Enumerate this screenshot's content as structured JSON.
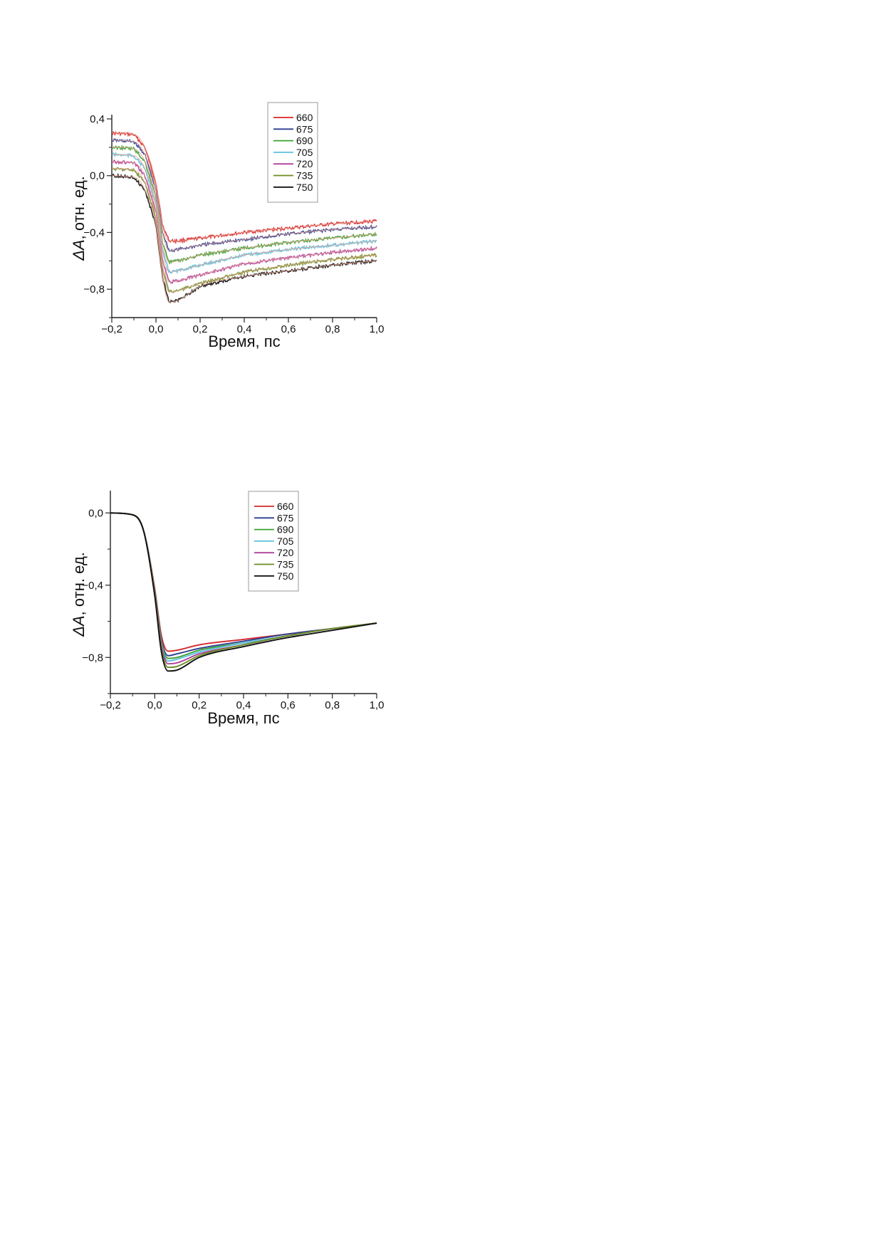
{
  "chart_data": [
    {
      "type": "line",
      "panel": "top",
      "xlabel": "Время, пс",
      "ylabel_symbol": "ΔA",
      "ylabel_text": ", отн. ед.",
      "xlim": [
        -0.2,
        1.0
      ],
      "ylim": [
        -1.0,
        0.4
      ],
      "xticks": [
        -0.2,
        0.0,
        0.2,
        0.4,
        0.6,
        0.8,
        1.0
      ],
      "xtick_labels": [
        "−0,2",
        "0,0",
        "0,2",
        "0,4",
        "0,6",
        "0,8",
        "1,0"
      ],
      "yticks": [
        -0.8,
        -0.4,
        0.0,
        0.4
      ],
      "ytick_labels": [
        "−0,8",
        "−0,4",
        "0,0",
        "0,4"
      ],
      "legend_position": "top-right",
      "grid": false,
      "note": "noisy measured traces with smooth fits overlaid",
      "series": [
        {
          "name": "660",
          "color": "#d62728",
          "x": [
            -0.2,
            -0.1,
            -0.05,
            0.0,
            0.03,
            0.06,
            0.1,
            0.2,
            0.4,
            0.6,
            0.8,
            1.0
          ],
          "y": [
            0.3,
            0.29,
            0.2,
            -0.05,
            -0.35,
            -0.46,
            -0.46,
            -0.44,
            -0.4,
            -0.37,
            -0.34,
            -0.32
          ]
        },
        {
          "name": "675",
          "color": "#2c3e8f",
          "x": [
            -0.2,
            -0.1,
            -0.05,
            0.0,
            0.03,
            0.06,
            0.1,
            0.2,
            0.4,
            0.6,
            0.8,
            1.0
          ],
          "y": [
            0.25,
            0.24,
            0.15,
            -0.1,
            -0.4,
            -0.53,
            -0.52,
            -0.49,
            -0.45,
            -0.41,
            -0.38,
            -0.36
          ]
        },
        {
          "name": "690",
          "color": "#3aa030",
          "x": [
            -0.2,
            -0.1,
            -0.05,
            0.0,
            0.03,
            0.06,
            0.1,
            0.2,
            0.4,
            0.6,
            0.8,
            1.0
          ],
          "y": [
            0.2,
            0.19,
            0.1,
            -0.15,
            -0.47,
            -0.61,
            -0.6,
            -0.56,
            -0.51,
            -0.47,
            -0.44,
            -0.41
          ]
        },
        {
          "name": "705",
          "color": "#5bc0de",
          "x": [
            -0.2,
            -0.1,
            -0.05,
            0.0,
            0.03,
            0.06,
            0.1,
            0.2,
            0.4,
            0.6,
            0.8,
            1.0
          ],
          "y": [
            0.15,
            0.14,
            0.05,
            -0.2,
            -0.53,
            -0.68,
            -0.67,
            -0.63,
            -0.56,
            -0.52,
            -0.49,
            -0.46
          ]
        },
        {
          "name": "720",
          "color": "#b0409b",
          "x": [
            -0.2,
            -0.1,
            -0.05,
            0.0,
            0.03,
            0.06,
            0.1,
            0.2,
            0.4,
            0.6,
            0.8,
            1.0
          ],
          "y": [
            0.1,
            0.09,
            0.0,
            -0.25,
            -0.6,
            -0.75,
            -0.74,
            -0.7,
            -0.62,
            -0.58,
            -0.54,
            -0.51
          ]
        },
        {
          "name": "735",
          "color": "#6b8e23",
          "x": [
            -0.2,
            -0.1,
            -0.05,
            0.0,
            0.03,
            0.06,
            0.1,
            0.2,
            0.4,
            0.6,
            0.8,
            1.0
          ],
          "y": [
            0.05,
            0.04,
            -0.05,
            -0.3,
            -0.66,
            -0.82,
            -0.81,
            -0.76,
            -0.68,
            -0.63,
            -0.59,
            -0.56
          ]
        },
        {
          "name": "750",
          "color": "#111111",
          "x": [
            -0.2,
            -0.1,
            -0.05,
            0.0,
            0.03,
            0.06,
            0.1,
            0.2,
            0.4,
            0.6,
            0.8,
            1.0
          ],
          "y": [
            0.0,
            -0.01,
            -0.1,
            -0.35,
            -0.72,
            -0.89,
            -0.88,
            -0.78,
            -0.71,
            -0.67,
            -0.63,
            -0.6
          ]
        }
      ]
    },
    {
      "type": "line",
      "panel": "bottom",
      "xlabel": "Время, пс",
      "ylabel_symbol": "ΔA",
      "ylabel_text": ", отн. ед.",
      "xlim": [
        -0.2,
        1.0
      ],
      "ylim": [
        -1.0,
        0.1
      ],
      "xticks": [
        -0.2,
        0.0,
        0.2,
        0.4,
        0.6,
        0.8,
        1.0
      ],
      "xtick_labels": [
        "−0,2",
        "0,0",
        "0,2",
        "0,4",
        "0,6",
        "0,8",
        "1,0"
      ],
      "yticks": [
        -0.8,
        -0.4,
        0.0
      ],
      "ytick_labels": [
        "−0,8",
        "−0,4",
        "0,0"
      ],
      "legend_position": "top-right",
      "grid": false,
      "series": [
        {
          "name": "660",
          "color": "#d62728",
          "x": [
            -0.2,
            -0.1,
            -0.05,
            0.0,
            0.03,
            0.06,
            0.1,
            0.2,
            0.4,
            0.6,
            0.8,
            1.0
          ],
          "y": [
            0.0,
            -0.01,
            -0.1,
            -0.42,
            -0.68,
            -0.765,
            -0.76,
            -0.73,
            -0.7,
            -0.67,
            -0.64,
            -0.61
          ]
        },
        {
          "name": "675",
          "color": "#2c3e8f",
          "x": [
            -0.2,
            -0.1,
            -0.05,
            0.0,
            0.03,
            0.06,
            0.1,
            0.2,
            0.4,
            0.6,
            0.8,
            1.0
          ],
          "y": [
            0.0,
            -0.01,
            -0.1,
            -0.43,
            -0.7,
            -0.79,
            -0.78,
            -0.75,
            -0.71,
            -0.67,
            -0.64,
            -0.61
          ]
        },
        {
          "name": "690",
          "color": "#3aa030",
          "x": [
            -0.2,
            -0.1,
            -0.05,
            0.0,
            0.03,
            0.06,
            0.1,
            0.2,
            0.4,
            0.6,
            0.8,
            1.0
          ],
          "y": [
            0.0,
            -0.01,
            -0.1,
            -0.43,
            -0.71,
            -0.805,
            -0.8,
            -0.76,
            -0.72,
            -0.68,
            -0.64,
            -0.61
          ]
        },
        {
          "name": "705",
          "color": "#5bc0de",
          "x": [
            -0.2,
            -0.1,
            -0.05,
            0.0,
            0.03,
            0.06,
            0.1,
            0.2,
            0.4,
            0.6,
            0.8,
            1.0
          ],
          "y": [
            0.0,
            -0.01,
            -0.1,
            -0.44,
            -0.72,
            -0.82,
            -0.81,
            -0.77,
            -0.72,
            -0.68,
            -0.64,
            -0.61
          ]
        },
        {
          "name": "720",
          "color": "#b0409b",
          "x": [
            -0.2,
            -0.1,
            -0.05,
            0.0,
            0.03,
            0.06,
            0.1,
            0.2,
            0.4,
            0.6,
            0.8,
            1.0
          ],
          "y": [
            0.0,
            -0.01,
            -0.1,
            -0.44,
            -0.73,
            -0.835,
            -0.83,
            -0.78,
            -0.73,
            -0.68,
            -0.64,
            -0.61
          ]
        },
        {
          "name": "735",
          "color": "#6b8e23",
          "x": [
            -0.2,
            -0.1,
            -0.05,
            0.0,
            0.03,
            0.06,
            0.1,
            0.2,
            0.4,
            0.6,
            0.8,
            1.0
          ],
          "y": [
            0.0,
            -0.01,
            -0.1,
            -0.45,
            -0.75,
            -0.855,
            -0.85,
            -0.79,
            -0.73,
            -0.68,
            -0.64,
            -0.61
          ]
        },
        {
          "name": "750",
          "color": "#111111",
          "x": [
            -0.2,
            -0.1,
            -0.05,
            0.0,
            0.03,
            0.06,
            0.1,
            0.2,
            0.4,
            0.6,
            0.8,
            1.0
          ],
          "y": [
            0.0,
            -0.01,
            -0.1,
            -0.46,
            -0.77,
            -0.875,
            -0.87,
            -0.8,
            -0.74,
            -0.69,
            -0.65,
            -0.61
          ]
        }
      ]
    }
  ]
}
